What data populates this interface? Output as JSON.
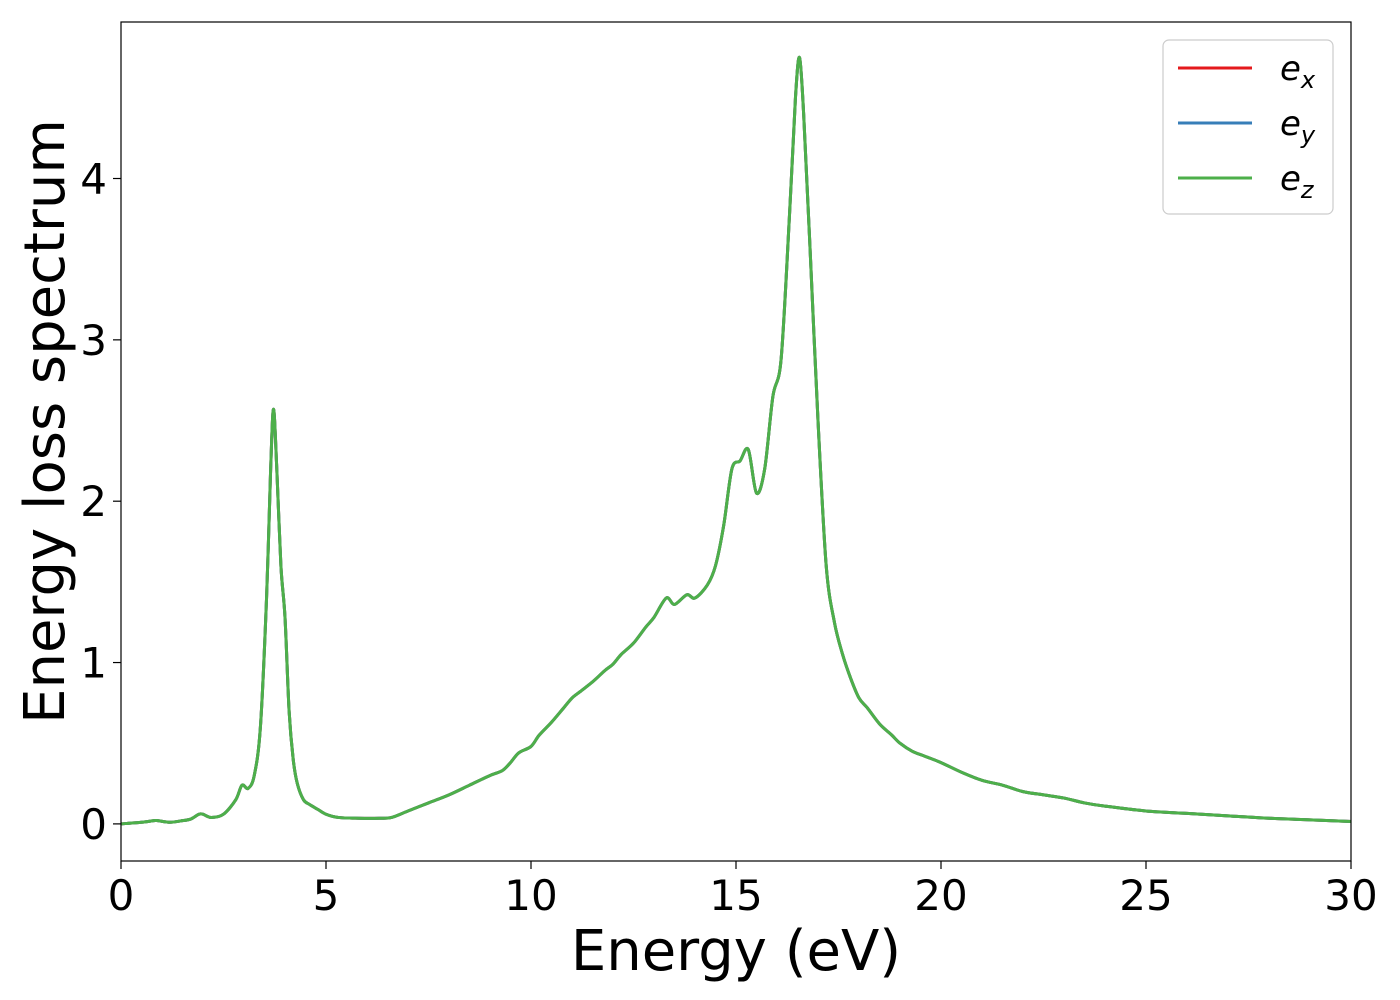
{
  "chart_data": {
    "type": "line",
    "title": "",
    "xlabel": "Energy (eV)",
    "ylabel": "Energy loss spectrum",
    "xlim": [
      0,
      30
    ],
    "ylim": [
      -0.23,
      4.97
    ],
    "xticks": [
      0,
      5,
      10,
      15,
      20,
      25,
      30
    ],
    "yticks": [
      0,
      1,
      2,
      3,
      4
    ],
    "grid": false,
    "legend_position": "top-right",
    "legend": [
      {
        "symbol": "e",
        "sub": "x",
        "color": "#e41a1c"
      },
      {
        "symbol": "e",
        "sub": "y",
        "color": "#377eb8"
      },
      {
        "symbol": "e",
        "sub": "z",
        "color": "#4daf4a"
      }
    ],
    "series": [
      {
        "name": "e_x",
        "color": "#e41a1c"
      },
      {
        "name": "e_y",
        "color": "#377eb8"
      },
      {
        "name": "e_z",
        "color": "#4daf4a"
      }
    ],
    "x": [
      0,
      0.5,
      0.8,
      0.9,
      1.2,
      1.5,
      1.7,
      1.9,
      2.0,
      2.2,
      2.5,
      2.8,
      2.95,
      3.1,
      3.25,
      3.4,
      3.55,
      3.65,
      3.72,
      3.8,
      3.9,
      4.0,
      4.1,
      4.2,
      4.3,
      4.45,
      4.6,
      4.8,
      5.0,
      5.3,
      5.8,
      6.3,
      6.6,
      7.0,
      7.5,
      8.0,
      8.5,
      9.0,
      9.3,
      9.5,
      9.7,
      10.0,
      10.2,
      10.5,
      10.8,
      11.0,
      11.2,
      11.5,
      11.8,
      12.0,
      12.2,
      12.5,
      12.8,
      13.0,
      13.3,
      13.5,
      13.8,
      14.0,
      14.3,
      14.5,
      14.7,
      14.9,
      15.1,
      15.3,
      15.5,
      15.7,
      15.9,
      16.1,
      16.3,
      16.45,
      16.55,
      16.65,
      16.8,
      17.0,
      17.2,
      17.4,
      17.6,
      17.8,
      18.0,
      18.2,
      18.5,
      18.8,
      19.0,
      19.3,
      19.6,
      20.0,
      20.5,
      21.0,
      21.5,
      22.0,
      22.5,
      23.0,
      23.5,
      24.0,
      25.0,
      26.0,
      27.0,
      28.0,
      29.0,
      30.0
    ],
    "values": [
      0.0,
      0.01,
      0.02,
      0.02,
      0.01,
      0.02,
      0.03,
      0.06,
      0.06,
      0.04,
      0.06,
      0.15,
      0.24,
      0.22,
      0.3,
      0.6,
      1.4,
      2.2,
      2.57,
      2.2,
      1.6,
      1.28,
      0.7,
      0.4,
      0.25,
      0.15,
      0.12,
      0.09,
      0.06,
      0.04,
      0.035,
      0.035,
      0.04,
      0.08,
      0.13,
      0.18,
      0.24,
      0.3,
      0.33,
      0.38,
      0.44,
      0.48,
      0.55,
      0.63,
      0.72,
      0.78,
      0.82,
      0.88,
      0.95,
      0.99,
      1.05,
      1.12,
      1.22,
      1.28,
      1.4,
      1.36,
      1.42,
      1.4,
      1.48,
      1.6,
      1.85,
      2.2,
      2.25,
      2.32,
      2.05,
      2.2,
      2.65,
      2.88,
      3.75,
      4.5,
      4.75,
      4.4,
      3.6,
      2.5,
      1.6,
      1.25,
      1.05,
      0.9,
      0.78,
      0.72,
      0.62,
      0.55,
      0.5,
      0.45,
      0.42,
      0.38,
      0.32,
      0.27,
      0.24,
      0.2,
      0.18,
      0.16,
      0.13,
      0.11,
      0.08,
      0.065,
      0.05,
      0.035,
      0.025,
      0.015
    ]
  }
}
